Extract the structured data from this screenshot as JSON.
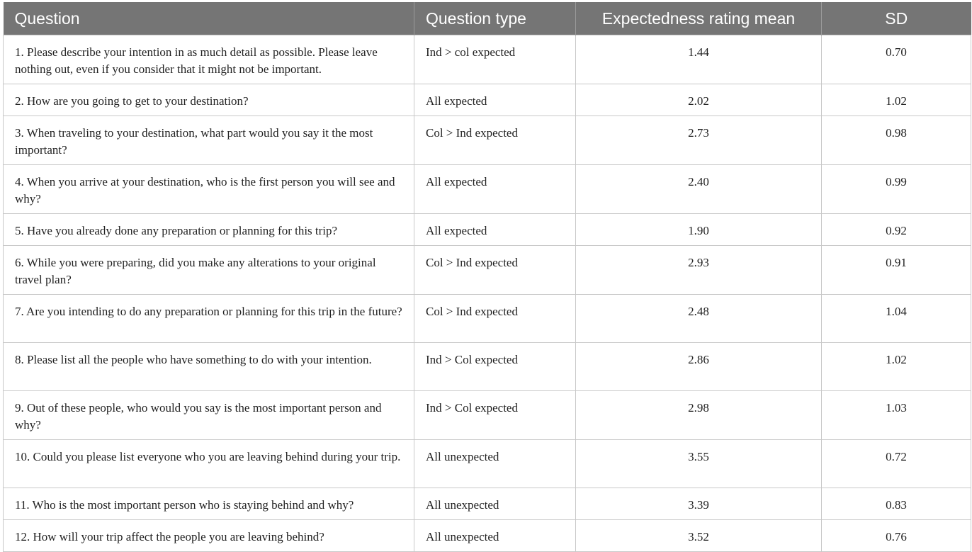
{
  "table": {
    "headers": [
      "Question",
      "Question type",
      "Expectedness rating mean",
      "SD"
    ],
    "rows": [
      {
        "question": "1. Please describe your intention in as much detail as possible. Please leave nothing out, even if you consider that it might not be important.",
        "type": "Ind > col expected",
        "mean": "1.44",
        "sd": "0.70"
      },
      {
        "question": "2. How are you going to get to your destination?",
        "type": "All expected",
        "mean": "2.02",
        "sd": "1.02"
      },
      {
        "question": "3. When traveling to your destination, what part would you say it the most important?",
        "type": "Col > Ind expected",
        "mean": "2.73",
        "sd": "0.98"
      },
      {
        "question": "4. When you arrive at your destination, who is the first person you will see and why?",
        "type": "All expected",
        "mean": "2.40",
        "sd": "0.99"
      },
      {
        "question": "5. Have you already done any preparation or planning for this trip?",
        "type": "All expected",
        "mean": "1.90",
        "sd": "0.92"
      },
      {
        "question": "6. While you were preparing, did you make any alterations to your original travel plan?",
        "type": "Col > Ind expected",
        "mean": "2.93",
        "sd": "0.91"
      },
      {
        "question": "7. Are you intending to do any preparation or planning for this trip in the future?",
        "type": "Col > Ind expected",
        "mean": "2.48",
        "sd": "1.04"
      },
      {
        "question": "8. Please list all the people who have something to do with your intention.",
        "type": "Ind > Col expected",
        "mean": "2.86",
        "sd": "1.02"
      },
      {
        "question": "9. Out of these people, who would you say is the most important person and why?",
        "type": "Ind > Col expected",
        "mean": "2.98",
        "sd": "1.03"
      },
      {
        "question": "10. Could you please list everyone who you are leaving behind during your trip.",
        "type": "All unexpected",
        "mean": "3.55",
        "sd": "0.72"
      },
      {
        "question": "11. Who is the most important person who is staying behind and why?",
        "type": "All unexpected",
        "mean": "3.39",
        "sd": "0.83"
      },
      {
        "question": "12. How will your trip affect the people you are leaving behind?",
        "type": "All unexpected",
        "mean": "3.52",
        "sd": "0.76"
      }
    ]
  }
}
